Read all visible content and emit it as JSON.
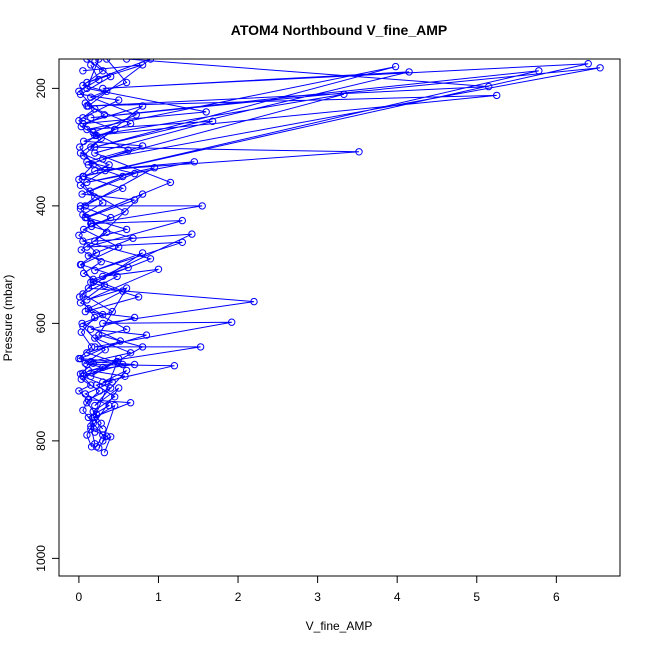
{
  "chart_data": {
    "type": "line",
    "title": "ATOM4 Northbound V_fine_AMP",
    "xlabel": "V_fine_AMP",
    "ylabel": "Pressure (mbar)",
    "xlim": [
      -0.25,
      6.8
    ],
    "ylim": [
      1030,
      150
    ],
    "y_reversed": true,
    "x_ticks": [
      0,
      1,
      2,
      3,
      4,
      5,
      6
    ],
    "y_ticks": [
      200,
      400,
      600,
      800,
      1000
    ],
    "grid": false,
    "legend": "none",
    "marker": "open-circle",
    "series_color": "#0000ff",
    "series": [
      {
        "points": [
          [
            0.25,
            150
          ],
          [
            0.1,
            200
          ],
          [
            1.6,
            240
          ],
          [
            0.05,
            260
          ],
          [
            0.8,
            230
          ],
          [
            0.15,
            300
          ],
          [
            3.52,
            308
          ],
          [
            0.2,
            340
          ],
          [
            1.45,
            325
          ],
          [
            0.1,
            360
          ],
          [
            0.95,
            335
          ],
          [
            0.08,
            400
          ],
          [
            1.55,
            400
          ],
          [
            0.15,
            430
          ],
          [
            1.3,
            425
          ],
          [
            0.1,
            470
          ],
          [
            1.3,
            462
          ],
          [
            0.2,
            510
          ],
          [
            0.8,
            480
          ],
          [
            0.12,
            540
          ],
          [
            2.2,
            563
          ],
          [
            0.3,
            600
          ],
          [
            1.92,
            598
          ],
          [
            0.2,
            640
          ],
          [
            1.53,
            640
          ],
          [
            0.1,
            670
          ],
          [
            1.2,
            672
          ],
          [
            0.3,
            700
          ],
          [
            0.6,
            680
          ],
          [
            0.2,
            740
          ],
          [
            0.5,
            710
          ],
          [
            0.15,
            780
          ],
          [
            0.35,
            792
          ],
          [
            0.25,
            812
          ]
        ]
      },
      {
        "points": [
          [
            0.6,
            150
          ],
          [
            5.15,
            197
          ],
          [
            0.1,
            230
          ],
          [
            5.25,
            212
          ],
          [
            0.2,
            280
          ],
          [
            3.33,
            210
          ],
          [
            0.3,
            320
          ],
          [
            6.55,
            165
          ],
          [
            0.15,
            250
          ],
          [
            5.78,
            170
          ],
          [
            0.05,
            350
          ],
          [
            6.4,
            158
          ],
          [
            0.3,
            200
          ],
          [
            4.15,
            172
          ],
          [
            0.2,
            300
          ],
          [
            3.98,
            163
          ],
          [
            0.1,
            270
          ],
          [
            1.68,
            256
          ],
          [
            0.2,
            310
          ],
          [
            1.15,
            360
          ],
          [
            0.08,
            420
          ],
          [
            0.8,
            380
          ],
          [
            0.2,
            460
          ],
          [
            1.42,
            448
          ],
          [
            0.3,
            520
          ],
          [
            1.0,
            508
          ],
          [
            0.1,
            560
          ],
          [
            0.6,
            540
          ],
          [
            0.25,
            620
          ],
          [
            0.8,
            640
          ],
          [
            0.15,
            690
          ],
          [
            0.5,
            660
          ],
          [
            0.2,
            760
          ],
          [
            0.45,
            740
          ],
          [
            0.3,
            800
          ],
          [
            0.4,
            793
          ],
          [
            0.32,
            820
          ]
        ]
      },
      {
        "points": [
          [
            0.05,
            170
          ],
          [
            0.8,
            160
          ],
          [
            0.1,
            190
          ],
          [
            0.9,
            150
          ],
          [
            0.12,
            230
          ],
          [
            0.65,
            260
          ],
          [
            0.06,
            290
          ],
          [
            0.8,
            298
          ],
          [
            0.12,
            330
          ],
          [
            0.55,
            350
          ],
          [
            0.04,
            380
          ],
          [
            0.7,
            390
          ],
          [
            0.1,
            420
          ],
          [
            0.6,
            440
          ],
          [
            0.05,
            460
          ],
          [
            0.9,
            490
          ],
          [
            0.15,
            530
          ],
          [
            0.75,
            555
          ],
          [
            0.08,
            580
          ],
          [
            0.7,
            590
          ],
          [
            0.15,
            610
          ],
          [
            0.85,
            620
          ],
          [
            0.1,
            650
          ],
          [
            0.55,
            670
          ],
          [
            0.05,
            690
          ],
          [
            0.4,
            710
          ],
          [
            0.12,
            730
          ],
          [
            0.65,
            735
          ],
          [
            0.18,
            760
          ],
          [
            0.3,
            780
          ]
        ]
      },
      {
        "points": [
          [
            0.2,
            155
          ],
          [
            0.4,
            180
          ],
          [
            0.02,
            210
          ],
          [
            0.5,
            220
          ],
          [
            0.05,
            250
          ],
          [
            0.45,
            270
          ],
          [
            0.02,
            310
          ],
          [
            0.38,
            330
          ],
          [
            0.06,
            350
          ],
          [
            0.55,
            370
          ],
          [
            0.02,
            400
          ],
          [
            0.4,
            420
          ],
          [
            0.06,
            440
          ],
          [
            0.5,
            470
          ],
          [
            0.03,
            500
          ],
          [
            0.48,
            520
          ],
          [
            0.05,
            550
          ],
          [
            0.42,
            580
          ],
          [
            0.04,
            600
          ],
          [
            0.52,
            630
          ],
          [
            0.02,
            660
          ],
          [
            0.48,
            665
          ],
          [
            0.05,
            685
          ],
          [
            0.42,
            700
          ],
          [
            0.08,
            720
          ],
          [
            0.38,
            740
          ],
          [
            0.12,
            760
          ],
          [
            0.3,
            790
          ],
          [
            0.22,
            810
          ]
        ]
      },
      {
        "points": [
          [
            0.35,
            150
          ],
          [
            0.6,
            190
          ],
          [
            0.15,
            215
          ],
          [
            0.72,
            245
          ],
          [
            0.18,
            275
          ],
          [
            0.62,
            305
          ],
          [
            0.1,
            325
          ],
          [
            0.7,
            345
          ],
          [
            0.14,
            375
          ],
          [
            0.58,
            410
          ],
          [
            0.16,
            435
          ],
          [
            0.68,
            455
          ],
          [
            0.12,
            485
          ],
          [
            0.62,
            505
          ],
          [
            0.18,
            525
          ],
          [
            0.55,
            545
          ],
          [
            0.12,
            575
          ],
          [
            0.6,
            610
          ],
          [
            0.2,
            625
          ],
          [
            0.65,
            650
          ],
          [
            0.15,
            665
          ],
          [
            0.7,
            670
          ],
          [
            0.12,
            680
          ],
          [
            0.58,
            690
          ],
          [
            0.22,
            705
          ],
          [
            0.45,
            725
          ],
          [
            0.18,
            750
          ],
          [
            0.28,
            770
          ],
          [
            0.2,
            785
          ]
        ]
      },
      {
        "points": [
          [
            0.1,
            150
          ],
          [
            0.3,
            170
          ],
          [
            0.05,
            195
          ],
          [
            0.35,
            205
          ],
          [
            0.08,
            225
          ],
          [
            0.32,
            245
          ],
          [
            0.03,
            265
          ],
          [
            0.28,
            285
          ],
          [
            0.06,
            315
          ],
          [
            0.33,
            340
          ],
          [
            0.02,
            365
          ],
          [
            0.3,
            395
          ],
          [
            0.05,
            415
          ],
          [
            0.35,
            445
          ],
          [
            0.03,
            475
          ],
          [
            0.28,
            495
          ],
          [
            0.06,
            515
          ],
          [
            0.32,
            535
          ],
          [
            0.02,
            565
          ],
          [
            0.3,
            585
          ],
          [
            0.05,
            605
          ],
          [
            0.33,
            645
          ],
          [
            0.08,
            668
          ],
          [
            0.3,
            675
          ],
          [
            0.03,
            695
          ],
          [
            0.26,
            715
          ],
          [
            0.1,
            735
          ],
          [
            0.22,
            755
          ],
          [
            0.15,
            775
          ],
          [
            0.2,
            805
          ]
        ]
      },
      {
        "points": [
          [
            0.15,
            160
          ],
          [
            0.25,
            185
          ],
          [
            0.0,
            205
          ],
          [
            0.2,
            235
          ],
          [
            0.0,
            255
          ],
          [
            0.22,
            280
          ],
          [
            0.01,
            300
          ],
          [
            0.18,
            330
          ],
          [
            0.0,
            355
          ],
          [
            0.2,
            385
          ],
          [
            0.02,
            405
          ],
          [
            0.16,
            430
          ],
          [
            0.0,
            450
          ],
          [
            0.22,
            480
          ],
          [
            0.02,
            500
          ],
          [
            0.18,
            530
          ],
          [
            0.01,
            555
          ],
          [
            0.2,
            590
          ],
          [
            0.03,
            615
          ],
          [
            0.16,
            640
          ],
          [
            0.0,
            660
          ],
          [
            0.18,
            668
          ],
          [
            0.02,
            686
          ],
          [
            0.15,
            705
          ],
          [
            0.0,
            715
          ],
          [
            0.12,
            730
          ],
          [
            0.05,
            748
          ],
          [
            0.18,
            770
          ],
          [
            0.1,
            790
          ],
          [
            0.16,
            810
          ]
        ]
      }
    ]
  }
}
